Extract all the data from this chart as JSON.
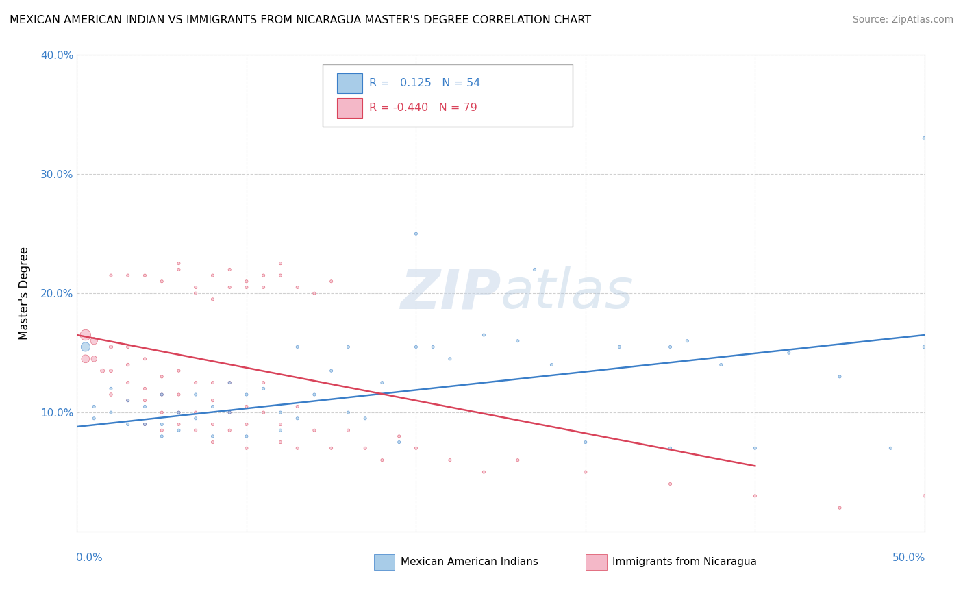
{
  "title": "MEXICAN AMERICAN INDIAN VS IMMIGRANTS FROM NICARAGUA MASTER'S DEGREE CORRELATION CHART",
  "source": "Source: ZipAtlas.com",
  "ylabel": "Master's Degree",
  "xlim": [
    0,
    0.5
  ],
  "ylim": [
    0,
    0.4
  ],
  "yticks": [
    0.1,
    0.2,
    0.3,
    0.4
  ],
  "ytick_labels": [
    "10.0%",
    "20.0%",
    "30.0%",
    "40.0%"
  ],
  "watermark": "ZIPatlas",
  "blue_color": "#a8cce8",
  "pink_color": "#f4b8c8",
  "trendline_blue": "#3a7ec8",
  "trendline_pink": "#d9435a",
  "blue_R": 0.125,
  "blue_N": 54,
  "pink_R": -0.44,
  "pink_N": 79,
  "blue_scatter_x": [
    0.005,
    0.01,
    0.01,
    0.02,
    0.02,
    0.03,
    0.03,
    0.04,
    0.04,
    0.05,
    0.05,
    0.05,
    0.06,
    0.06,
    0.07,
    0.07,
    0.08,
    0.08,
    0.09,
    0.09,
    0.1,
    0.1,
    0.11,
    0.12,
    0.12,
    0.13,
    0.14,
    0.15,
    0.16,
    0.17,
    0.18,
    0.19,
    0.2,
    0.22,
    0.24,
    0.26,
    0.28,
    0.3,
    0.32,
    0.35,
    0.38,
    0.42,
    0.45,
    0.48,
    0.5,
    0.5,
    0.27,
    0.2,
    0.35,
    0.4,
    0.13,
    0.16,
    0.21,
    0.36
  ],
  "blue_scatter_y": [
    0.155,
    0.095,
    0.105,
    0.1,
    0.12,
    0.09,
    0.11,
    0.105,
    0.09,
    0.09,
    0.115,
    0.08,
    0.1,
    0.085,
    0.095,
    0.115,
    0.105,
    0.08,
    0.1,
    0.125,
    0.115,
    0.08,
    0.12,
    0.1,
    0.085,
    0.095,
    0.115,
    0.135,
    0.1,
    0.095,
    0.125,
    0.075,
    0.25,
    0.145,
    0.165,
    0.16,
    0.14,
    0.075,
    0.155,
    0.07,
    0.14,
    0.15,
    0.13,
    0.07,
    0.155,
    0.33,
    0.22,
    0.155,
    0.155,
    0.07,
    0.155,
    0.155,
    0.155,
    0.16
  ],
  "blue_scatter_s": [
    500,
    50,
    50,
    50,
    50,
    50,
    50,
    50,
    50,
    50,
    50,
    50,
    50,
    50,
    50,
    50,
    50,
    50,
    50,
    50,
    50,
    50,
    50,
    50,
    50,
    50,
    50,
    50,
    50,
    50,
    50,
    50,
    50,
    50,
    50,
    50,
    50,
    50,
    50,
    50,
    50,
    50,
    50,
    50,
    80,
    80,
    50,
    50,
    50,
    50,
    50,
    50,
    50,
    50
  ],
  "pink_scatter_x": [
    0.005,
    0.005,
    0.01,
    0.01,
    0.015,
    0.02,
    0.02,
    0.02,
    0.03,
    0.03,
    0.03,
    0.03,
    0.04,
    0.04,
    0.04,
    0.04,
    0.05,
    0.05,
    0.05,
    0.05,
    0.06,
    0.06,
    0.06,
    0.06,
    0.07,
    0.07,
    0.07,
    0.08,
    0.08,
    0.08,
    0.08,
    0.09,
    0.09,
    0.09,
    0.1,
    0.1,
    0.1,
    0.11,
    0.11,
    0.12,
    0.12,
    0.13,
    0.13,
    0.14,
    0.15,
    0.16,
    0.17,
    0.18,
    0.19,
    0.2,
    0.22,
    0.24,
    0.26,
    0.3,
    0.35,
    0.4,
    0.45,
    0.5,
    0.02,
    0.03,
    0.04,
    0.05,
    0.06,
    0.07,
    0.08,
    0.09,
    0.1,
    0.11,
    0.12,
    0.13,
    0.14,
    0.15,
    0.06,
    0.07,
    0.08,
    0.09,
    0.1,
    0.11,
    0.12
  ],
  "pink_scatter_y": [
    0.165,
    0.145,
    0.16,
    0.145,
    0.135,
    0.155,
    0.135,
    0.115,
    0.14,
    0.155,
    0.11,
    0.125,
    0.145,
    0.12,
    0.11,
    0.09,
    0.13,
    0.1,
    0.115,
    0.085,
    0.115,
    0.1,
    0.135,
    0.09,
    0.1,
    0.125,
    0.085,
    0.11,
    0.09,
    0.125,
    0.075,
    0.1,
    0.085,
    0.125,
    0.09,
    0.105,
    0.07,
    0.1,
    0.125,
    0.09,
    0.075,
    0.07,
    0.105,
    0.085,
    0.07,
    0.085,
    0.07,
    0.06,
    0.08,
    0.07,
    0.06,
    0.05,
    0.06,
    0.05,
    0.04,
    0.03,
    0.02,
    0.03,
    0.215,
    0.215,
    0.215,
    0.21,
    0.22,
    0.2,
    0.215,
    0.205,
    0.21,
    0.205,
    0.215,
    0.205,
    0.2,
    0.21,
    0.225,
    0.205,
    0.195,
    0.22,
    0.205,
    0.215,
    0.225
  ],
  "pink_scatter_s": [
    700,
    400,
    300,
    200,
    100,
    80,
    70,
    60,
    60,
    55,
    50,
    50,
    50,
    50,
    50,
    50,
    50,
    50,
    50,
    50,
    50,
    50,
    50,
    50,
    50,
    50,
    50,
    50,
    50,
    50,
    50,
    50,
    50,
    50,
    50,
    50,
    50,
    50,
    50,
    50,
    50,
    50,
    50,
    50,
    50,
    50,
    50,
    50,
    50,
    50,
    50,
    50,
    50,
    50,
    50,
    50,
    50,
    50,
    50,
    50,
    50,
    50,
    50,
    50,
    50,
    50,
    50,
    50,
    50,
    50,
    50,
    50,
    50,
    50,
    50,
    50,
    50,
    50,
    50
  ],
  "blue_trend_x": [
    0.0,
    0.5
  ],
  "blue_trend_y": [
    0.088,
    0.165
  ],
  "pink_trend_x": [
    0.0,
    0.4
  ],
  "pink_trend_y": [
    0.165,
    0.055
  ]
}
